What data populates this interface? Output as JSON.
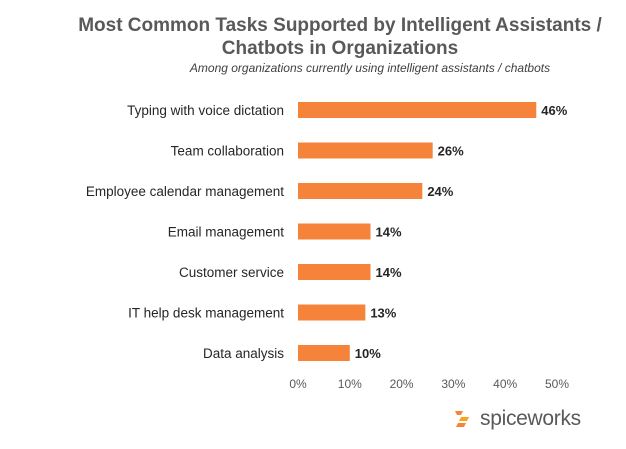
{
  "chart_data": {
    "type": "bar",
    "orientation": "horizontal",
    "title": "Most Common Tasks Supported by Intelligent Assistants / Chatbots in Organizations",
    "subtitle": "Among organizations currently using intelligent assistants / chatbots",
    "categories": [
      "Typing with voice dictation",
      "Team collaboration",
      "Employee calendar management",
      "Email management",
      "Customer service",
      "IT help desk management",
      "Data analysis"
    ],
    "values": [
      46,
      26,
      24,
      14,
      14,
      13,
      10
    ],
    "value_labels": [
      "46%",
      "26%",
      "24%",
      "14%",
      "14%",
      "13%",
      "10%"
    ],
    "xlim": [
      0,
      50
    ],
    "x_ticks": [
      "0%",
      "10%",
      "20%",
      "30%",
      "40%",
      "50%"
    ],
    "grid": false,
    "bar_color": "#F5833A"
  },
  "brand": {
    "name": "spiceworks",
    "icon": "spiceworks-logo-icon",
    "color": "#F5833A"
  }
}
